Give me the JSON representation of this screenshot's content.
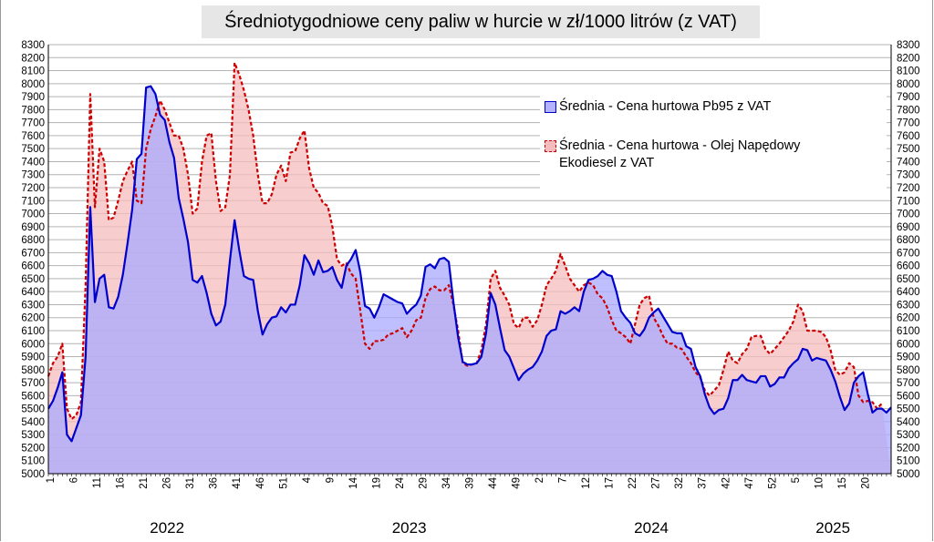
{
  "chart_data": {
    "type": "area",
    "title": "Średniotygodniowe ceny paliw w hurcie w zł/1000 litrów (z VAT)",
    "ylim": [
      5000,
      8300
    ],
    "y_ticks": [
      5000,
      5100,
      5200,
      5300,
      5400,
      5500,
      5600,
      5700,
      5800,
      5900,
      6000,
      6100,
      6200,
      6300,
      6400,
      6500,
      6600,
      6700,
      6800,
      6900,
      7000,
      7100,
      7200,
      7300,
      7400,
      7500,
      7600,
      7700,
      7800,
      7900,
      8000,
      8100,
      8200,
      8300
    ],
    "x_ticks": [
      "1",
      "6",
      "11",
      "16",
      "21",
      "26",
      "31",
      "36",
      "41",
      "46",
      "51",
      "4",
      "9",
      "14",
      "19",
      "24",
      "29",
      "34",
      "39",
      "44",
      "49",
      "2",
      "7",
      "12",
      "17",
      "22",
      "27",
      "32",
      "37",
      "42",
      "47",
      "52",
      "5",
      "10",
      "15",
      "20"
    ],
    "years": [
      {
        "label": "2022",
        "start_week": 0
      },
      {
        "label": "2023",
        "start_week": 52
      },
      {
        "label": "2024",
        "start_week": 104
      },
      {
        "label": "2025",
        "start_week": 156
      }
    ],
    "grid": true,
    "legend": "top-right",
    "series": [
      {
        "name": "Średnia - Cena hurtowa Pb95 z VAT",
        "color": "#0000cc",
        "fill": "#aaaaff",
        "values": [
          5500,
          5560,
          5660,
          5780,
          5300,
          5250,
          5350,
          5450,
          5900,
          7050,
          6320,
          6500,
          6530,
          6280,
          6270,
          6360,
          6530,
          6770,
          7030,
          7420,
          7460,
          7970,
          7980,
          7920,
          7760,
          7720,
          7550,
          7430,
          7120,
          6960,
          6780,
          6490,
          6470,
          6520,
          6390,
          6230,
          6140,
          6170,
          6300,
          6640,
          6950,
          6720,
          6520,
          6500,
          6490,
          6250,
          6070,
          6150,
          6200,
          6210,
          6280,
          6240,
          6300,
          6300,
          6450,
          6680,
          6620,
          6530,
          6640,
          6550,
          6560,
          6590,
          6490,
          6430,
          6600,
          6650,
          6720,
          6550,
          6290,
          6270,
          6200,
          6280,
          6380,
          6360,
          6340,
          6320,
          6310,
          6230,
          6270,
          6300,
          6370,
          6590,
          6610,
          6580,
          6650,
          6660,
          6630,
          6320,
          6050,
          5860,
          5840,
          5840,
          5850,
          5900,
          6080,
          6390,
          6300,
          6120,
          5950,
          5900,
          5810,
          5720,
          5770,
          5800,
          5820,
          5870,
          5940,
          6060,
          6100,
          6110,
          6250,
          6230,
          6250,
          6280,
          6250,
          6400,
          6490,
          6500,
          6520,
          6560,
          6530,
          6520,
          6400,
          6250,
          6200,
          6160,
          6080,
          6060,
          6110,
          6200,
          6240,
          6270,
          6210,
          6150,
          6090,
          6080,
          6080,
          5980,
          5960,
          5820,
          5750,
          5610,
          5510,
          5460,
          5490,
          5500,
          5580,
          5720,
          5720,
          5760,
          5720,
          5710,
          5700,
          5750,
          5750,
          5670,
          5690,
          5740,
          5740,
          5810,
          5850,
          5880,
          5960,
          5950,
          5870,
          5890,
          5880,
          5870,
          5800,
          5710,
          5590,
          5490,
          5540,
          5700,
          5750,
          5780,
          5610,
          5470,
          5500,
          5500,
          5470,
          5510
        ]
      },
      {
        "name": "Średnia - Cena hurtowa - Olej Napędowy Ekodiesel z VAT",
        "color": "#cc0000",
        "fill": "#f4bcbc",
        "values": [
          5750,
          5850,
          5900,
          6000,
          5500,
          5420,
          5450,
          5550,
          6450,
          7920,
          7050,
          7500,
          7400,
          6950,
          6970,
          7100,
          7250,
          7330,
          7400,
          7100,
          7080,
          7500,
          7650,
          7750,
          7870,
          7800,
          7700,
          7600,
          7600,
          7500,
          7300,
          7000,
          7040,
          7400,
          7600,
          7620,
          7250,
          7020,
          7050,
          7300,
          8160,
          8070,
          7950,
          7800,
          7600,
          7300,
          7080,
          7080,
          7150,
          7300,
          7370,
          7250,
          7470,
          7480,
          7580,
          7640,
          7350,
          7200,
          7160,
          7080,
          7060,
          6900,
          6650,
          6600,
          6620,
          6540,
          6500,
          6250,
          6000,
          5960,
          6020,
          6020,
          6030,
          6070,
          6080,
          6100,
          6120,
          6050,
          6100,
          6180,
          6200,
          6350,
          6420,
          6440,
          6410,
          6410,
          6450,
          6300,
          6100,
          5850,
          5830,
          5840,
          5850,
          5950,
          6150,
          6500,
          6560,
          6430,
          6370,
          6300,
          6150,
          6120,
          6200,
          6200,
          6130,
          6180,
          6300,
          6450,
          6500,
          6560,
          6690,
          6600,
          6500,
          6450,
          6400,
          6450,
          6470,
          6450,
          6380,
          6350,
          6280,
          6180,
          6100,
          6080,
          6050,
          6000,
          6150,
          6300,
          6350,
          6370,
          6200,
          6140,
          6060,
          6000,
          6000,
          5970,
          5960,
          5900,
          5850,
          5780,
          5740,
          5640,
          5600,
          5640,
          5680,
          5800,
          5940,
          5870,
          5850,
          5920,
          5960,
          6050,
          6060,
          6060,
          5960,
          5920,
          5960,
          6000,
          6050,
          6100,
          6170,
          6300,
          6250,
          6100,
          6100,
          6100,
          6090,
          6050,
          5950,
          5800,
          5760,
          5780,
          5850,
          5820,
          5600,
          5550,
          5560,
          5550,
          5500,
          5540
        ]
      }
    ]
  }
}
